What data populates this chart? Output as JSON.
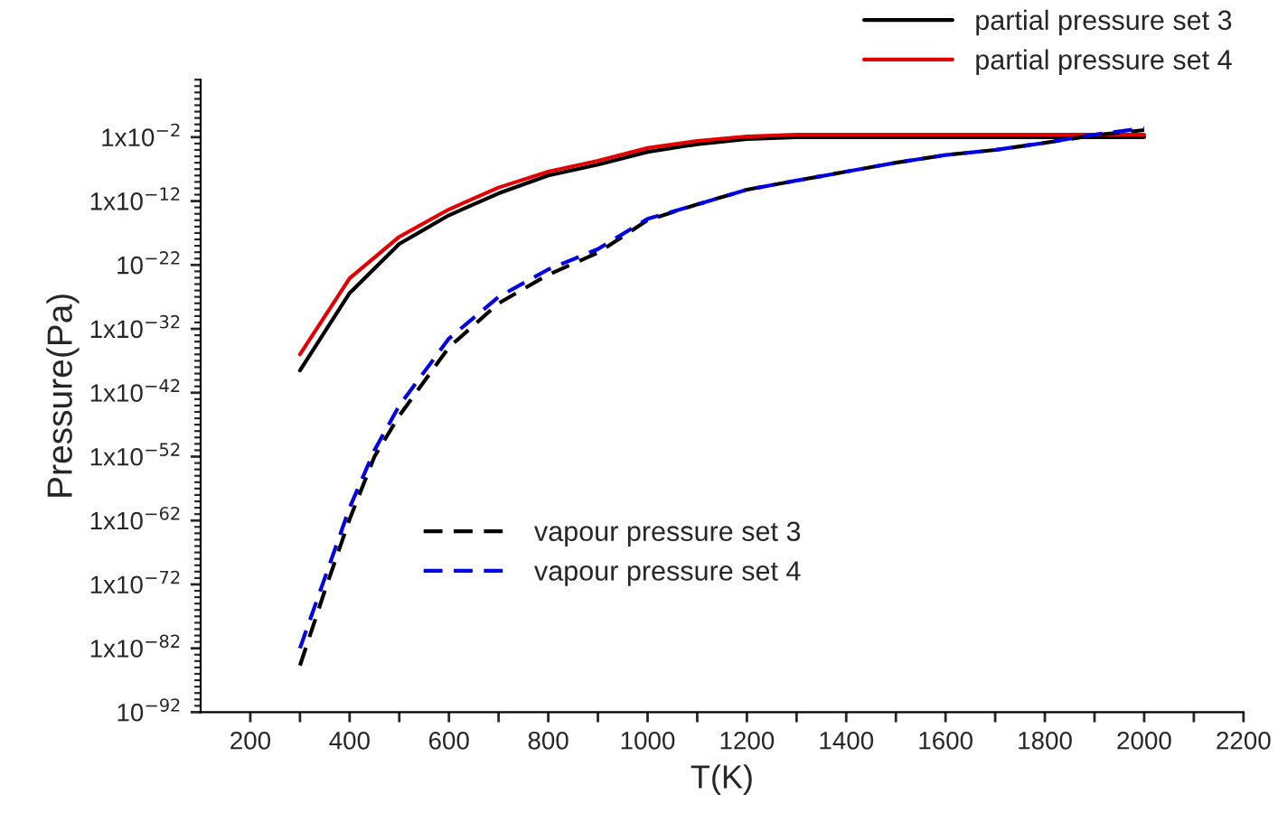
{
  "chart_data": {
    "type": "line",
    "xlabel": "T(K)",
    "ylabel": "Pressure(Pa)",
    "log": "y",
    "legend": "top right",
    "xlim": [
      100,
      2200
    ],
    "xticks": [
      200,
      {
        "value": 300,
        "label": null
      },
      400,
      {
        "value": 500,
        "label": null
      },
      600,
      {
        "value": 700,
        "label": null
      },
      800,
      {
        "value": 900,
        "label": null
      },
      1000,
      {
        "value": 1100,
        "label": null
      },
      1200,
      {
        "value": 1300,
        "label": null
      },
      1400,
      {
        "value": 1500,
        "label": null
      },
      1600,
      {
        "value": 1700,
        "label": null
      },
      1800,
      {
        "value": 1900,
        "label": null
      },
      2000,
      {
        "value": 2100,
        "label": null
      },
      2200
    ],
    "ylim": [
      1e-92,
      10000000.0
    ],
    "yticks": [
      {
        "value": 1e-92,
        "label": "10$^{−92}$"
      },
      {
        "value": 1e-82,
        "label": "1x10$^{−82}$"
      },
      {
        "value": 1e-72,
        "label": "1x10$^{−72}$"
      },
      {
        "value": 1e-62,
        "label": "1x10$^{−62}$"
      },
      {
        "value": 1e-52,
        "label": "1x10$^{−52}$"
      },
      {
        "value": 1e-42,
        "label": "1x10$^{−42}$"
      },
      {
        "value": 1e-32,
        "label": "1x10$^{−32}$"
      },
      {
        "value": 1e-22,
        "label": "10$^{−22}$"
      },
      {
        "value": 1e-12,
        "label": "1x10$^{−12}$"
      },
      {
        "value": 0.01,
        "label": "1x10$^{−2}$"
      }
    ],
    "series": [
      {
        "name": "partial pressure set 3",
        "color": "#000000",
        "line_style": "solid",
        "x": [
          300,
          400,
          500,
          600,
          700,
          800,
          900,
          1000,
          1100,
          1200,
          1300,
          1400,
          1500,
          1600,
          1700,
          1800,
          1900,
          2000
        ],
        "values": [
          3e-39,
          4e-27,
          2e-19,
          6e-15,
          1.6e-11,
          1e-08,
          5e-07,
          5e-05,
          0.0008,
          0.005,
          0.01,
          0.01,
          0.01,
          0.01,
          0.01,
          0.01,
          0.01,
          0.01
        ]
      },
      {
        "name": "partial pressure set 4",
        "color": "#e00000",
        "line_style": "solid",
        "x": [
          300,
          400,
          500,
          600,
          700,
          800,
          900,
          1000,
          1100,
          1200,
          1300,
          1400,
          1500,
          1600,
          1700,
          1800,
          1900,
          2000
        ],
        "values": [
          1e-36,
          8e-25,
          2.5e-18,
          5e-14,
          1.3e-10,
          4e-08,
          2e-06,
          0.0002,
          0.0025,
          0.013,
          0.025,
          0.025,
          0.025,
          0.025,
          0.025,
          0.025,
          0.025,
          0.025
        ]
      },
      {
        "name": "vapour pressure set 3",
        "color": "#000000",
        "line_style": "dashed",
        "x": [
          300,
          350,
          400,
          450,
          500,
          600,
          700,
          800,
          900,
          1000,
          1100,
          1200,
          1300,
          1400,
          1500,
          1600,
          1700,
          1800,
          1900,
          2000
        ],
        "values": [
          2e-85,
          1e-73,
          1.6e-62,
          1e-52,
          2.5e-46,
          1.3e-35,
          1e-28,
          3e-24,
          8e-21,
          1e-15,
          3e-13,
          6e-11,
          1.6e-09,
          4e-08,
          1e-06,
          1.6e-05,
          0.0001,
          0.0013,
          0.02,
          0.13
        ]
      },
      {
        "name": "vapour pressure set 4",
        "color": "#0000e0",
        "line_style": "dashed",
        "x": [
          300,
          350,
          400,
          450,
          500,
          600,
          700,
          800,
          900,
          1000,
          1100,
          1200,
          1300,
          1400,
          1500,
          1600,
          1700,
          1800,
          1900,
          2000
        ],
        "values": [
          1e-82,
          1e-71,
          1e-60,
          1e-51,
          1e-44,
          3e-34,
          1e-27,
          2e-23,
          3e-20,
          1.6e-15,
          3e-13,
          6e-11,
          1.6e-09,
          4e-08,
          1e-06,
          1.6e-05,
          0.0001,
          0.0013,
          0.025,
          0.25
        ]
      }
    ]
  }
}
